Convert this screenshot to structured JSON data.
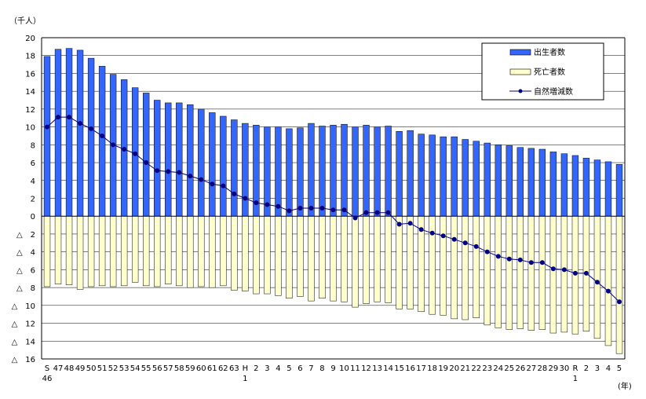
{
  "chart_data": {
    "type": "bar+line",
    "y_unit_label": "（千人）",
    "x_unit_label": "(年)",
    "ylim": [
      -16,
      20
    ],
    "y_ticks": [
      {
        "value": 20,
        "label": "20"
      },
      {
        "value": 18,
        "label": "18"
      },
      {
        "value": 16,
        "label": "16"
      },
      {
        "value": 14,
        "label": "14"
      },
      {
        "value": 12,
        "label": "12"
      },
      {
        "value": 10,
        "label": "10"
      },
      {
        "value": 8,
        "label": "8"
      },
      {
        "value": 6,
        "label": "6"
      },
      {
        "value": 4,
        "label": "4"
      },
      {
        "value": 2,
        "label": "2"
      },
      {
        "value": 0,
        "label": "0"
      },
      {
        "value": -2,
        "label": "△　2"
      },
      {
        "value": -4,
        "label": "△　4"
      },
      {
        "value": -6,
        "label": "△　6"
      },
      {
        "value": -8,
        "label": "△　8"
      },
      {
        "value": -10,
        "label": "△　10"
      },
      {
        "value": -12,
        "label": "△　12"
      },
      {
        "value": -14,
        "label": "△　14"
      },
      {
        "value": -16,
        "label": "△　16"
      }
    ],
    "categories": [
      "S46",
      "47",
      "48",
      "49",
      "50",
      "51",
      "52",
      "53",
      "54",
      "55",
      "56",
      "57",
      "58",
      "59",
      "60",
      "61",
      "62",
      "63",
      "H1",
      "2",
      "3",
      "4",
      "5",
      "6",
      "7",
      "8",
      "9",
      "10",
      "11",
      "12",
      "13",
      "14",
      "15",
      "16",
      "17",
      "18",
      "19",
      "20",
      "21",
      "22",
      "23",
      "24",
      "25",
      "26",
      "27",
      "28",
      "29",
      "30",
      "R1",
      "2",
      "3",
      "4",
      "5"
    ],
    "x_tick_labels": [
      {
        "top": "S",
        "bottom": "46"
      },
      {
        "top": "47",
        "bottom": ""
      },
      {
        "top": "48",
        "bottom": ""
      },
      {
        "top": "49",
        "bottom": ""
      },
      {
        "top": "50",
        "bottom": ""
      },
      {
        "top": "51",
        "bottom": ""
      },
      {
        "top": "52",
        "bottom": ""
      },
      {
        "top": "53",
        "bottom": ""
      },
      {
        "top": "54",
        "bottom": ""
      },
      {
        "top": "55",
        "bottom": ""
      },
      {
        "top": "56",
        "bottom": ""
      },
      {
        "top": "57",
        "bottom": ""
      },
      {
        "top": "58",
        "bottom": ""
      },
      {
        "top": "59",
        "bottom": ""
      },
      {
        "top": "60",
        "bottom": ""
      },
      {
        "top": "61",
        "bottom": ""
      },
      {
        "top": "62",
        "bottom": ""
      },
      {
        "top": "63",
        "bottom": ""
      },
      {
        "top": "H",
        "bottom": "1"
      },
      {
        "top": "2",
        "bottom": ""
      },
      {
        "top": "3",
        "bottom": ""
      },
      {
        "top": "4",
        "bottom": ""
      },
      {
        "top": "5",
        "bottom": ""
      },
      {
        "top": "6",
        "bottom": ""
      },
      {
        "top": "7",
        "bottom": ""
      },
      {
        "top": "8",
        "bottom": ""
      },
      {
        "top": "9",
        "bottom": ""
      },
      {
        "top": "10",
        "bottom": ""
      },
      {
        "top": "11",
        "bottom": ""
      },
      {
        "top": "12",
        "bottom": ""
      },
      {
        "top": "13",
        "bottom": ""
      },
      {
        "top": "14",
        "bottom": ""
      },
      {
        "top": "15",
        "bottom": ""
      },
      {
        "top": "16",
        "bottom": ""
      },
      {
        "top": "17",
        "bottom": ""
      },
      {
        "top": "18",
        "bottom": ""
      },
      {
        "top": "19",
        "bottom": ""
      },
      {
        "top": "20",
        "bottom": ""
      },
      {
        "top": "21",
        "bottom": ""
      },
      {
        "top": "22",
        "bottom": ""
      },
      {
        "top": "23",
        "bottom": ""
      },
      {
        "top": "24",
        "bottom": ""
      },
      {
        "top": "25",
        "bottom": ""
      },
      {
        "top": "26",
        "bottom": ""
      },
      {
        "top": "27",
        "bottom": ""
      },
      {
        "top": "28",
        "bottom": ""
      },
      {
        "top": "29",
        "bottom": ""
      },
      {
        "top": "30",
        "bottom": ""
      },
      {
        "top": "R",
        "bottom": "1"
      },
      {
        "top": "2",
        "bottom": ""
      },
      {
        "top": "3",
        "bottom": ""
      },
      {
        "top": "4",
        "bottom": ""
      },
      {
        "top": "5",
        "bottom": ""
      }
    ],
    "series": [
      {
        "name": "出生者数",
        "kind": "bar",
        "color": "#3366ff",
        "values": [
          17.9,
          18.7,
          18.8,
          18.6,
          17.7,
          16.8,
          15.9,
          15.3,
          14.4,
          13.8,
          13.0,
          12.7,
          12.7,
          12.5,
          12.0,
          11.6,
          11.2,
          10.8,
          10.4,
          10.2,
          10.0,
          10.0,
          9.8,
          9.9,
          10.4,
          10.1,
          10.2,
          10.3,
          10.0,
          10.2,
          10.0,
          10.1,
          9.5,
          9.6,
          9.2,
          9.1,
          8.9,
          8.9,
          8.6,
          8.4,
          8.2,
          8.0,
          7.9,
          7.7,
          7.6,
          7.5,
          7.2,
          7.0,
          6.8,
          6.5,
          6.3,
          6.1,
          5.8
        ]
      },
      {
        "name": "死亡者数",
        "kind": "bar",
        "color": "#ffffcc",
        "values": [
          -7.9,
          -7.6,
          -7.7,
          -8.2,
          -7.9,
          -7.8,
          -7.9,
          -7.8,
          -7.4,
          -7.8,
          -7.9,
          -7.6,
          -7.8,
          -8.0,
          -7.9,
          -8.0,
          -7.8,
          -8.3,
          -8.4,
          -8.7,
          -8.7,
          -8.9,
          -9.2,
          -9.0,
          -9.5,
          -9.2,
          -9.5,
          -9.6,
          -10.2,
          -9.8,
          -9.6,
          -9.7,
          -10.4,
          -10.4,
          -10.7,
          -11.0,
          -11.1,
          -11.5,
          -11.6,
          -11.4,
          -12.2,
          -12.5,
          -12.7,
          -12.6,
          -12.8,
          -12.7,
          -13.1,
          -13.0,
          -13.2,
          -12.9,
          -13.7,
          -14.5,
          -15.4
        ]
      },
      {
        "name": "自然増減数",
        "kind": "line",
        "color": "#000080",
        "values": [
          10.0,
          11.1,
          11.1,
          10.4,
          9.8,
          9.0,
          8.0,
          7.5,
          7.0,
          6.0,
          5.1,
          5.0,
          4.9,
          4.5,
          4.1,
          3.6,
          3.4,
          2.5,
          2.0,
          1.5,
          1.3,
          1.1,
          0.6,
          0.9,
          0.9,
          0.9,
          0.7,
          0.7,
          -0.2,
          0.4,
          0.4,
          0.4,
          -0.9,
          -0.8,
          -1.5,
          -1.9,
          -2.2,
          -2.6,
          -3.0,
          -3.4,
          -4.0,
          -4.5,
          -4.8,
          -4.9,
          -5.2,
          -5.2,
          -5.9,
          -6.0,
          -6.4,
          -6.4,
          -7.4,
          -8.4,
          -9.6
        ]
      }
    ],
    "legend": {
      "placement": "top-right",
      "entries": [
        "出生者数",
        "死亡者数",
        "自然増減数"
      ]
    },
    "grid": true
  }
}
